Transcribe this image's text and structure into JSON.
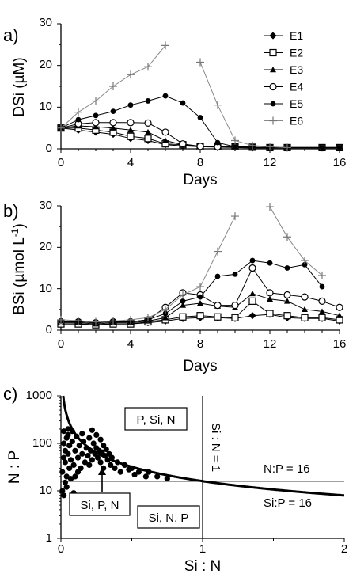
{
  "chart_data": [
    {
      "panel_label": "a)",
      "type": "line",
      "xlabel": "Days",
      "ylabel": "DSi (µM)",
      "xlim": [
        0,
        16
      ],
      "ylim": [
        0,
        30
      ],
      "xticks": [
        "0",
        "4",
        "8",
        "12",
        "16"
      ],
      "yticks": [
        "0",
        "10",
        "20",
        "30"
      ],
      "legend_position": "top-right",
      "series": [
        {
          "name": "E1",
          "marker": "diamond-filled",
          "x": [
            0,
            1,
            2,
            3,
            4,
            5,
            6,
            7,
            8,
            9,
            10,
            11,
            12,
            13,
            15,
            16
          ],
          "y": [
            5,
            4.5,
            4,
            3.5,
            2.5,
            2,
            1,
            0.7,
            0.5,
            0.4,
            0.3,
            0.2,
            0.2,
            0.2,
            0.2,
            0.2
          ]
        },
        {
          "name": "E2",
          "marker": "square-open",
          "x": [
            0,
            1,
            2,
            3,
            4,
            5,
            6,
            7,
            8,
            9,
            10,
            11,
            12,
            13,
            15,
            16
          ],
          "y": [
            5,
            5,
            4.5,
            4,
            3,
            2.5,
            1.2,
            1,
            0.5,
            0.5,
            0.5,
            0.4,
            0.3,
            0.3,
            0.3,
            0.3
          ]
        },
        {
          "name": "E3",
          "marker": "triangle-filled",
          "x": [
            0,
            1,
            2,
            3,
            4,
            5,
            6,
            7,
            8,
            9,
            10,
            11,
            12,
            13,
            15,
            16
          ],
          "y": [
            5,
            5.5,
            5.3,
            5,
            4.5,
            4,
            2,
            1,
            0.6,
            0.5,
            0.5,
            0.4,
            0.3,
            0.3,
            0.3,
            0.3
          ]
        },
        {
          "name": "E4",
          "marker": "circle-open",
          "x": [
            0,
            1,
            2,
            3,
            4,
            5,
            6,
            7,
            8,
            9,
            10,
            11,
            12,
            13,
            15,
            16
          ],
          "y": [
            5,
            6,
            6.3,
            6.3,
            6.3,
            6.2,
            4,
            1.2,
            0.6,
            0.5,
            0.5,
            0.4,
            0.3,
            0.3,
            0.3,
            0.3
          ]
        },
        {
          "name": "E5",
          "marker": "circle-filled",
          "x": [
            0,
            1,
            2,
            3,
            4,
            5,
            6,
            7,
            8,
            9,
            10,
            11,
            12,
            13,
            15,
            16
          ],
          "y": [
            5,
            7,
            8,
            9,
            10.5,
            11.5,
            12.7,
            11,
            7.5,
            1.5,
            0.5,
            0.4,
            0.3,
            0.3,
            0.3,
            0.3
          ]
        },
        {
          "name": "E6",
          "marker": "plus",
          "x": [
            0,
            1,
            2,
            3,
            4,
            5,
            6
          ],
          "y": [
            5,
            8.8,
            11.5,
            15,
            17.8,
            19.7,
            24.8
          ]
        },
        {
          "name": "E6",
          "marker": "plus",
          "x": [
            8,
            9,
            10,
            11,
            12,
            13
          ],
          "y": [
            20.8,
            10.5,
            2,
            0.8,
            0.5,
            0.3
          ]
        }
      ]
    },
    {
      "panel_label": "b)",
      "type": "line",
      "xlabel": "Days",
      "ylabel": "BSi (µmol L",
      "ylabel_sup": "-1",
      "ylabel_end": ")",
      "xlim": [
        0,
        16
      ],
      "ylim": [
        0,
        30
      ],
      "xticks": [
        "0",
        "4",
        "8",
        "12",
        "16"
      ],
      "yticks": [
        "0",
        "10",
        "20",
        "30"
      ],
      "series": [
        {
          "name": "E1",
          "marker": "diamond-filled",
          "x": [
            0,
            1,
            2,
            3,
            4,
            5,
            6,
            7,
            8,
            9,
            10,
            11,
            12,
            13,
            14,
            15,
            16
          ],
          "y": [
            1.5,
            1.5,
            1.3,
            1.5,
            1.5,
            1.8,
            2.2,
            2.8,
            3,
            3,
            2.8,
            3.5,
            3.8,
            3,
            2.8,
            2.8,
            2.2
          ]
        },
        {
          "name": "E2",
          "marker": "square-open",
          "x": [
            0,
            1,
            2,
            3,
            4,
            5,
            6,
            7,
            8,
            9,
            10,
            11,
            12,
            13,
            14,
            15,
            16
          ],
          "y": [
            1.5,
            1.5,
            1.3,
            1.5,
            1.5,
            2,
            2.5,
            3.2,
            3.5,
            3.2,
            3,
            7,
            4,
            3.5,
            3,
            3,
            2.5
          ]
        },
        {
          "name": "E3",
          "marker": "triangle-filled",
          "x": [
            0,
            1,
            2,
            3,
            4,
            5,
            6,
            7,
            8,
            9,
            10,
            11,
            12,
            13,
            14,
            15,
            16
          ],
          "y": [
            1.8,
            1.8,
            1.5,
            1.8,
            1.8,
            2.2,
            3,
            6,
            6.5,
            5.8,
            5.5,
            8.8,
            7.5,
            7,
            5,
            4.5,
            3.5
          ]
        },
        {
          "name": "E4",
          "marker": "circle-open",
          "x": [
            0,
            1,
            2,
            3,
            4,
            5,
            6,
            7,
            8,
            9,
            10,
            11,
            12,
            13,
            14,
            15,
            16
          ],
          "y": [
            2,
            2,
            1.8,
            2,
            2,
            2.5,
            5.5,
            9,
            8.5,
            6,
            6,
            15,
            9,
            8.5,
            8,
            7,
            5.5
          ]
        },
        {
          "name": "E5",
          "marker": "circle-filled",
          "x": [
            0,
            1,
            2,
            3,
            4,
            5,
            6,
            7,
            8,
            9,
            10,
            11,
            12,
            13,
            14,
            15
          ],
          "y": [
            2.2,
            2,
            1.8,
            2,
            2,
            2.5,
            4,
            7,
            8,
            13,
            13.5,
            16.8,
            16.2,
            15,
            15.8,
            10.5
          ]
        },
        {
          "name": "E6",
          "marker": "plus",
          "x": [
            0,
            1,
            2,
            3,
            4,
            5,
            6,
            7,
            8,
            9,
            10
          ],
          "y": [
            2.5,
            2.3,
            2,
            2.2,
            2.5,
            3,
            5,
            8.5,
            10.5,
            19,
            27.5
          ]
        },
        {
          "name": "E6",
          "marker": "plus",
          "x": [
            12,
            13,
            14,
            15
          ],
          "y": [
            29.8,
            22.5,
            16.8,
            13.2
          ]
        }
      ]
    },
    {
      "panel_label": "c)",
      "type": "scatter",
      "xlabel": "Si : N",
      "ylabel": "N : P",
      "xlim": [
        0,
        2
      ],
      "ylim": [
        1,
        1000
      ],
      "yscale": "log",
      "xticks": [
        "0",
        "1",
        "2"
      ],
      "yticks": [
        "1",
        "10",
        "100",
        "1000"
      ],
      "reference_lines": [
        {
          "kind": "vertical",
          "x": 1,
          "label": "Si : N = 1"
        },
        {
          "kind": "horizontal",
          "y": 16,
          "label": "N:P = 16"
        },
        {
          "kind": "curve",
          "relation": "y = 16 / x",
          "label": "Si:P = 16"
        }
      ],
      "region_labels": [
        "P, Si, N",
        "Si, P, N",
        "Si, N, P"
      ],
      "points": [
        [
          0.01,
          10
        ],
        [
          0.01,
          25
        ],
        [
          0.02,
          8
        ],
        [
          0.02,
          50
        ],
        [
          0.02,
          100
        ],
        [
          0.02,
          180
        ],
        [
          0.03,
          15
        ],
        [
          0.03,
          40
        ],
        [
          0.03,
          70
        ],
        [
          0.04,
          12
        ],
        [
          0.04,
          20
        ],
        [
          0.04,
          130
        ],
        [
          0.05,
          60
        ],
        [
          0.05,
          150
        ],
        [
          0.05,
          200
        ],
        [
          0.06,
          30
        ],
        [
          0.06,
          90
        ],
        [
          0.07,
          18
        ],
        [
          0.07,
          45
        ],
        [
          0.08,
          110
        ],
        [
          0.08,
          180
        ],
        [
          0.09,
          9
        ],
        [
          0.09,
          35
        ],
        [
          0.1,
          70
        ],
        [
          0.1,
          20
        ],
        [
          0.11,
          140
        ],
        [
          0.12,
          50
        ],
        [
          0.12,
          25
        ],
        [
          0.13,
          90
        ],
        [
          0.14,
          30
        ],
        [
          0.15,
          60
        ],
        [
          0.15,
          160
        ],
        [
          0.16,
          110
        ],
        [
          0.17,
          40
        ],
        [
          0.18,
          80
        ],
        [
          0.19,
          55
        ],
        [
          0.2,
          130
        ],
        [
          0.2,
          35
        ],
        [
          0.21,
          70
        ],
        [
          0.22,
          45
        ],
        [
          0.22,
          190
        ],
        [
          0.23,
          100
        ],
        [
          0.24,
          60
        ],
        [
          0.25,
          80
        ],
        [
          0.25,
          150
        ],
        [
          0.26,
          50
        ],
        [
          0.27,
          70
        ],
        [
          0.28,
          40
        ],
        [
          0.28,
          120
        ],
        [
          0.29,
          65
        ],
        [
          0.3,
          90
        ],
        [
          0.3,
          30
        ],
        [
          0.31,
          55
        ],
        [
          0.32,
          75
        ],
        [
          0.33,
          45
        ],
        [
          0.34,
          60
        ],
        [
          0.35,
          35
        ],
        [
          0.36,
          50
        ],
        [
          0.38,
          30
        ],
        [
          0.4,
          40
        ],
        [
          0.42,
          25
        ],
        [
          0.45,
          35
        ],
        [
          0.48,
          28
        ],
        [
          0.5,
          30
        ],
        [
          0.52,
          22
        ],
        [
          0.55,
          25
        ],
        [
          0.6,
          20
        ],
        [
          0.62,
          25
        ],
        [
          0.68,
          20
        ],
        [
          0.75,
          18
        ]
      ]
    }
  ]
}
